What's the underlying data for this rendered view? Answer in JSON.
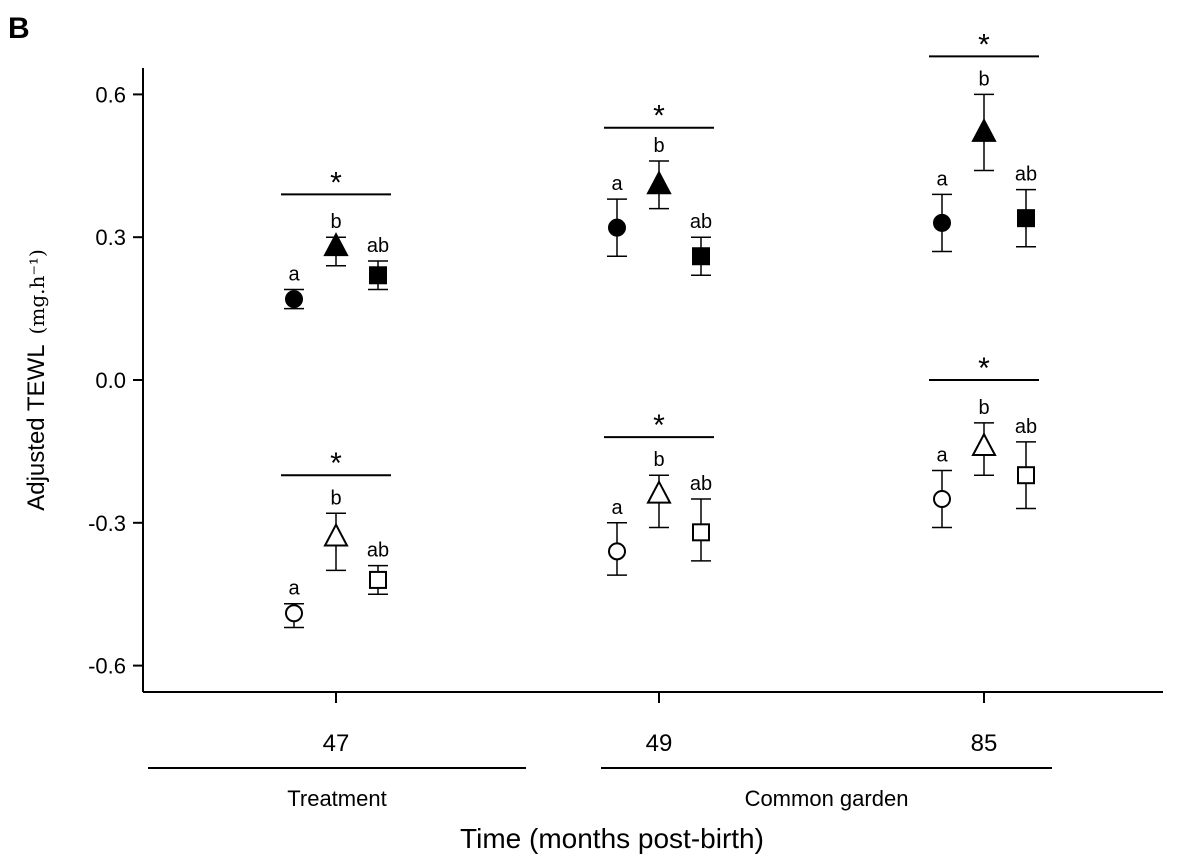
{
  "panel_label": "B",
  "chart_data": {
    "type": "scatter",
    "title": "",
    "xlabel": "Time (months post-birth)",
    "ylabel": "Adjusted TEWL",
    "ylabel_unit": "(mg.h⁻¹)",
    "categories": [
      "47",
      "49",
      "85"
    ],
    "ylim": [
      -0.66,
      0.66
    ],
    "yticks": [
      0.6,
      0.3,
      0.0,
      -0.3,
      -0.6
    ],
    "ytick_labels": [
      "0.6",
      "0.3",
      "0.0",
      "-0.3",
      "-0.6"
    ],
    "grid": false,
    "period_groups": [
      {
        "label": "Treatment",
        "categories": [
          "47"
        ]
      },
      {
        "label": "Common garden",
        "categories": [
          "49",
          "85"
        ]
      }
    ],
    "series": [
      {
        "marker": "circle",
        "fill": "#000000",
        "values": [
          0.17,
          0.32,
          0.33
        ],
        "err_low": [
          0.15,
          0.26,
          0.27
        ],
        "err_high": [
          0.19,
          0.38,
          0.39
        ],
        "letters": [
          "a",
          "a",
          "a"
        ]
      },
      {
        "marker": "triangle",
        "fill": "#000000",
        "values": [
          0.28,
          0.41,
          0.52
        ],
        "err_low": [
          0.24,
          0.36,
          0.44
        ],
        "err_high": [
          0.3,
          0.46,
          0.6
        ],
        "letters": [
          "b",
          "b",
          "b"
        ]
      },
      {
        "marker": "square",
        "fill": "#000000",
        "values": [
          0.22,
          0.26,
          0.34
        ],
        "err_low": [
          0.19,
          0.22,
          0.28
        ],
        "err_high": [
          0.25,
          0.3,
          0.4
        ],
        "letters": [
          "ab",
          "ab",
          "ab"
        ]
      },
      {
        "marker": "circle",
        "fill": "#ffffff",
        "values": [
          -0.49,
          -0.36,
          -0.25
        ],
        "err_low": [
          -0.52,
          -0.41,
          -0.31
        ],
        "err_high": [
          -0.47,
          -0.3,
          -0.19
        ],
        "letters": [
          "a",
          "a",
          "a"
        ]
      },
      {
        "marker": "triangle",
        "fill": "#ffffff",
        "values": [
          -0.33,
          -0.24,
          -0.14
        ],
        "err_low": [
          -0.4,
          -0.31,
          -0.2
        ],
        "err_high": [
          -0.28,
          -0.2,
          -0.09
        ],
        "letters": [
          "b",
          "b",
          "b"
        ]
      },
      {
        "marker": "square",
        "fill": "#ffffff",
        "values": [
          -0.42,
          -0.32,
          -0.2
        ],
        "err_low": [
          -0.45,
          -0.38,
          -0.27
        ],
        "err_high": [
          -0.39,
          -0.25,
          -0.13
        ],
        "letters": [
          "ab",
          "ab",
          "ab"
        ]
      }
    ],
    "significance": [
      {
        "category": "47",
        "symbol": "*",
        "y": 0.39
      },
      {
        "category": "49",
        "symbol": "*",
        "y": 0.53
      },
      {
        "category": "85",
        "symbol": "*",
        "y": 0.68
      },
      {
        "category": "47",
        "symbol": "*",
        "y": -0.2
      },
      {
        "category": "49",
        "symbol": "*",
        "y": -0.12
      },
      {
        "category": "85",
        "symbol": "*",
        "y": 0.0
      }
    ]
  }
}
